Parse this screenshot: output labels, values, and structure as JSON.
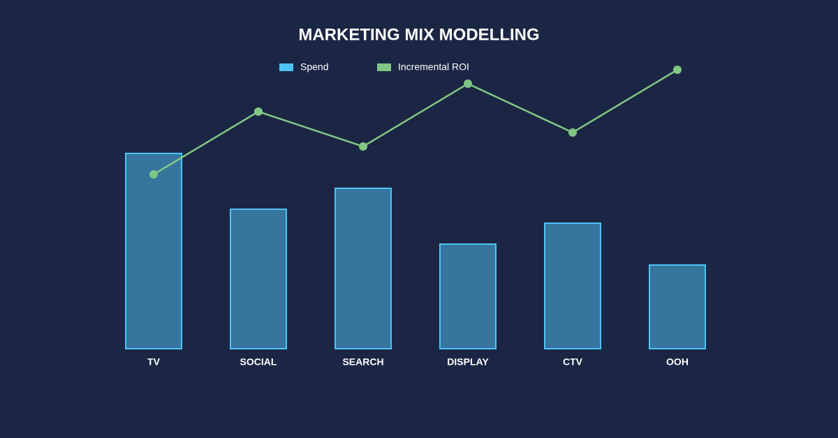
{
  "chart_data": {
    "type": "bar-line",
    "title": "MARKETING MIX MODELLING",
    "categories": [
      "TV",
      "SOCIAL",
      "SEARCH",
      "DISPLAY",
      "CTV",
      "OOH"
    ],
    "series": [
      {
        "name": "Spend",
        "color": "#4fc3f7",
        "type": "bar",
        "values": [
          280,
          200,
          230,
          150,
          180,
          120
        ]
      },
      {
        "name": "Incremental ROI",
        "color": "#81c784",
        "type": "line",
        "values": [
          250,
          340,
          290,
          380,
          310,
          400
        ]
      }
    ],
    "ylim": [
      0,
      400
    ],
    "grid": false,
    "legend": "top"
  }
}
